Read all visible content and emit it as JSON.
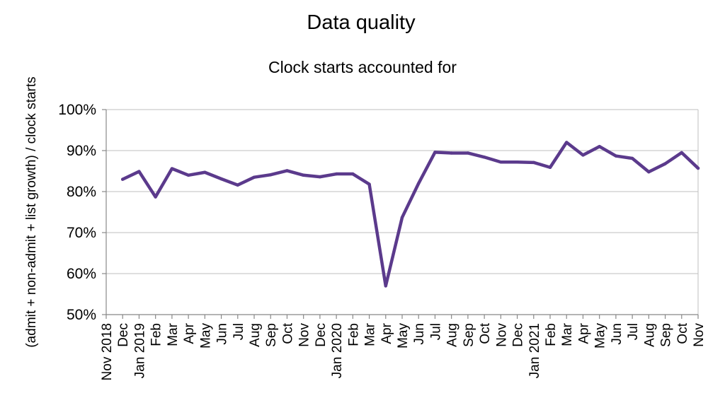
{
  "chart_data": {
    "type": "line",
    "title": "Data quality",
    "subtitle": "Clock starts accounted for",
    "ylabel": "(admit + non-admit + list growth) / clock starts",
    "xlabel": "",
    "ylim": [
      50,
      100
    ],
    "yticks": [
      "50%",
      "60%",
      "70%",
      "80%",
      "90%",
      "100%"
    ],
    "grid": true,
    "legend": "none",
    "categories": [
      "Nov 2018",
      "Dec",
      "Jan 2019",
      "Feb",
      "Mar",
      "Apr",
      "May",
      "Jun",
      "Jul",
      "Aug",
      "Sep",
      "Oct",
      "Nov",
      "Dec",
      "Jan 2020",
      "Feb",
      "Mar",
      "Apr",
      "May",
      "Jun",
      "Jul",
      "Aug",
      "Sep",
      "Oct",
      "Nov",
      "Dec",
      "Jan 2021",
      "Feb",
      "Mar",
      "Apr",
      "May",
      "Jun",
      "Jul",
      "Aug",
      "Sep",
      "Oct",
      "Nov"
    ],
    "series": [
      {
        "color": "#5b3a8c",
        "values": [
          null,
          83.0,
          84.9,
          78.7,
          85.6,
          84.0,
          84.7,
          83.1,
          81.6,
          83.5,
          84.1,
          85.1,
          84.0,
          83.6,
          84.3,
          84.3,
          81.8,
          57.0,
          73.7,
          82.0,
          89.6,
          89.4,
          89.4,
          88.4,
          87.2,
          87.2,
          87.1,
          85.9,
          92.0,
          88.9,
          91.0,
          88.7,
          88.1,
          84.8,
          86.8,
          89.5,
          85.7
        ]
      }
    ]
  }
}
